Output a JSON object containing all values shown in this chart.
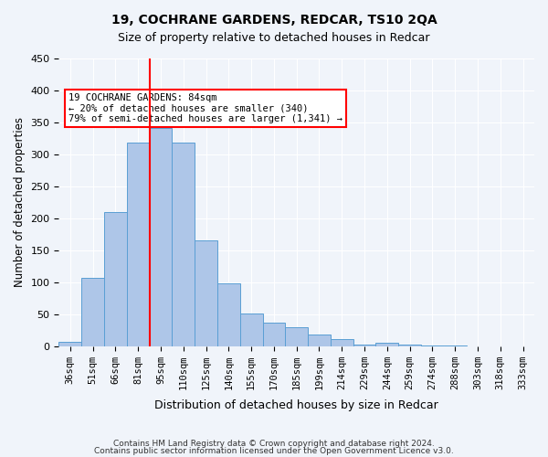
{
  "title1": "19, COCHRANE GARDENS, REDCAR, TS10 2QA",
  "title2": "Size of property relative to detached houses in Redcar",
  "xlabel": "Distribution of detached houses by size in Redcar",
  "ylabel": "Number of detached properties",
  "categories": [
    "36sqm",
    "51sqm",
    "66sqm",
    "81sqm",
    "95sqm",
    "110sqm",
    "125sqm",
    "140sqm",
    "155sqm",
    "170sqm",
    "185sqm",
    "199sqm",
    "214sqm",
    "229sqm",
    "244sqm",
    "259sqm",
    "274sqm",
    "288sqm",
    "303sqm",
    "318sqm",
    "333sqm"
  ],
  "values": [
    7,
    107,
    210,
    318,
    342,
    318,
    165,
    98,
    51,
    36,
    29,
    18,
    11,
    3,
    5,
    2,
    1,
    1,
    0,
    0,
    0
  ],
  "bar_color": "#aec6e8",
  "bar_edge_color": "#5a9fd4",
  "vline_x": 3,
  "vline_color": "red",
  "annotation_text": "19 COCHRANE GARDENS: 84sqm\n← 20% of detached houses are smaller (340)\n79% of semi-detached houses are larger (1,341) →",
  "annotation_box_color": "white",
  "annotation_box_edge": "red",
  "ylim": [
    0,
    450
  ],
  "yticks": [
    0,
    50,
    100,
    150,
    200,
    250,
    300,
    350,
    400,
    450
  ],
  "footer1": "Contains HM Land Registry data © Crown copyright and database right 2024.",
  "footer2": "Contains public sector information licensed under the Open Government Licence v3.0.",
  "bg_color": "#f0f4fa",
  "plot_bg_color": "#f0f4fa"
}
